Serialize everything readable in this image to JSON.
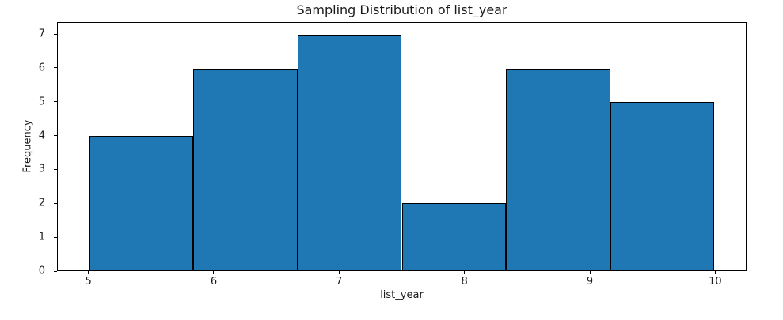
{
  "chart_data": {
    "type": "bar",
    "subtype": "histogram",
    "title": "Sampling Distribution of list_year",
    "xlabel": "list_year",
    "ylabel": "Frequency",
    "bin_edges": [
      5,
      5.8333,
      6.6667,
      7.5,
      8.3333,
      9.1667,
      10
    ],
    "frequencies": [
      4,
      6,
      7,
      2,
      6,
      5
    ],
    "xticks": [
      5,
      6,
      7,
      8,
      9,
      10
    ],
    "yticks": [
      0,
      1,
      2,
      3,
      4,
      5,
      6,
      7
    ],
    "xlim": [
      4.75,
      10.25
    ],
    "ylim": [
      0,
      7.35
    ],
    "grid": false,
    "legend": null,
    "bar_color": "#1f77b4",
    "bar_edge_color": "#000000",
    "background_color": "#ffffff",
    "spine_color": "#000000"
  }
}
